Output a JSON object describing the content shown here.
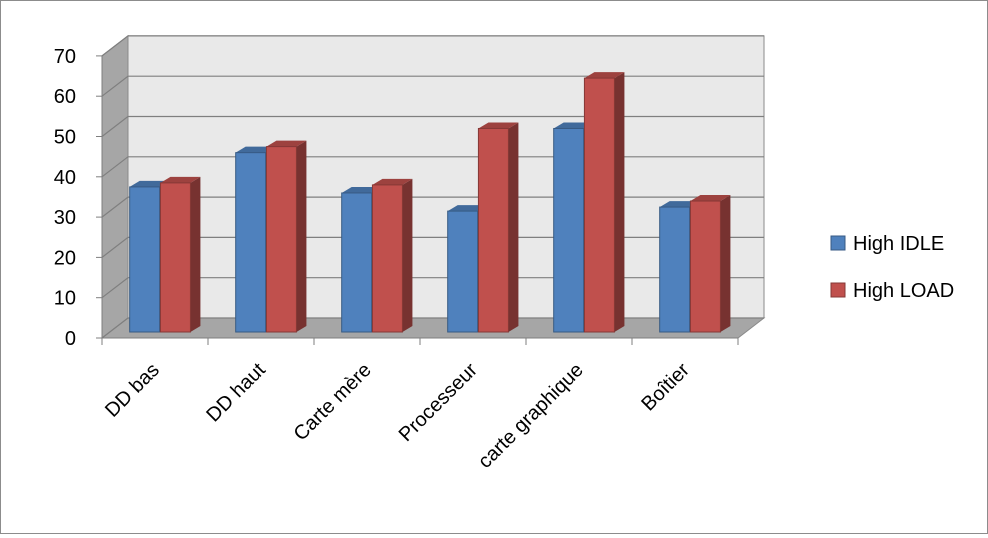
{
  "chart_data": {
    "type": "bar",
    "title": "",
    "xlabel": "",
    "ylabel": "",
    "ylim": [
      0,
      70
    ],
    "yticks": [
      0,
      10,
      20,
      30,
      40,
      50,
      60,
      70
    ],
    "grid": true,
    "legend_position": "right",
    "categories": [
      "DD bas",
      "DD haut",
      "Carte mère",
      "Processeur",
      "carte graphique",
      "Boîtier"
    ],
    "series": [
      {
        "name": "High IDLE",
        "color": "#4f81bd",
        "values": [
          36,
          44.5,
          34.5,
          30,
          50.5,
          31
        ]
      },
      {
        "name": "High LOAD",
        "color": "#c0504d",
        "values": [
          37,
          46,
          36.5,
          50.5,
          63,
          32.5
        ]
      }
    ]
  }
}
